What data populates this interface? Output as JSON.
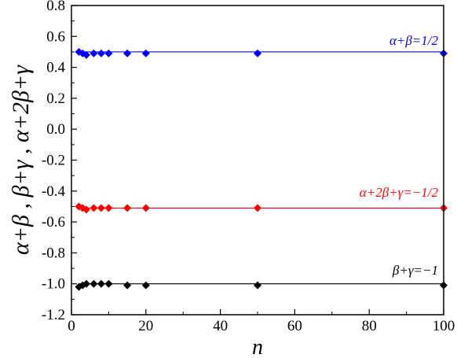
{
  "chart_data": {
    "type": "scatter",
    "xlabel": "n",
    "ylabel": "α+β , β+γ , α+2β+γ",
    "xlim": [
      0,
      100
    ],
    "ylim": [
      -1.2,
      0.8
    ],
    "x_ticks": [
      "0",
      "20",
      "40",
      "60",
      "80",
      "100"
    ],
    "y_ticks": [
      "0.8",
      "0.6",
      "0.4",
      "0.2",
      "0.0",
      "-0.2",
      "-0.4",
      "-0.6",
      "-0.8",
      "-1.0",
      "-1.2"
    ],
    "x_tick_values": [
      0,
      20,
      40,
      60,
      80,
      100
    ],
    "y_tick_values": [
      0.8,
      0.6,
      0.4,
      0.2,
      0.0,
      -0.2,
      -0.4,
      -0.6,
      -0.8,
      -1.0,
      -1.2
    ],
    "grid": false,
    "series": [
      {
        "color": "#0000ff",
        "x": [
          2,
          3,
          4,
          6,
          8,
          10,
          15,
          20,
          50,
          100
        ],
        "y": [
          0.5,
          0.49,
          0.48,
          0.49,
          0.49,
          0.49,
          0.49,
          0.49,
          0.49,
          0.49
        ],
        "line": 0.5,
        "annotation": "α+β=1/2"
      },
      {
        "color": "#ff0000",
        "x": [
          2,
          3,
          4,
          6,
          8,
          10,
          15,
          20,
          50,
          100
        ],
        "y": [
          -0.5,
          -0.51,
          -0.52,
          -0.51,
          -0.51,
          -0.51,
          -0.51,
          -0.51,
          -0.51,
          -0.51
        ],
        "line": -0.51,
        "annotation": "α+2β+γ=−1/2"
      },
      {
        "color": "#000000",
        "x": [
          2,
          3,
          4,
          6,
          8,
          10,
          15,
          20,
          50,
          100
        ],
        "y": [
          -1.02,
          -1.01,
          -1.0,
          -1.0,
          -1.0,
          -1.0,
          -1.01,
          -1.01,
          -1.01,
          -1.01
        ],
        "line": -1.0,
        "annotation": "β+γ=−1"
      }
    ]
  }
}
